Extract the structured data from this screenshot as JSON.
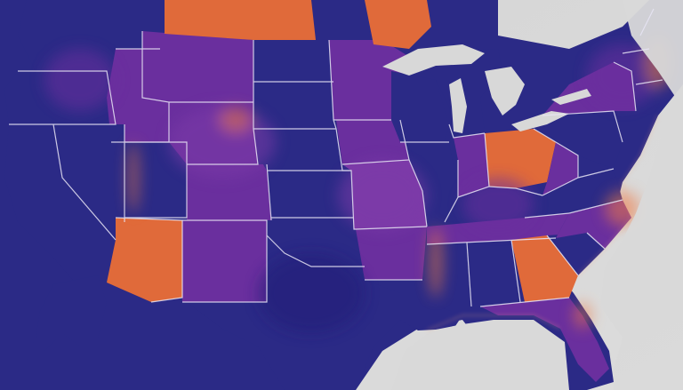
{
  "map": {
    "palette": {
      "background": "#cfcfcf",
      "ocean_light": "#d9d9d9",
      "navy": "#2b2a86",
      "navy_dark": "#241f78",
      "purple": "#6a2f9e",
      "violet": "#7c3aa8",
      "orange": "#e06a3a",
      "orange_light": "#ee7a44",
      "border": "#e9e6f5"
    },
    "regions": [
      {
        "name": "washington",
        "fill": "navy"
      },
      {
        "name": "oregon",
        "fill": "navy"
      },
      {
        "name": "california",
        "fill": "navy"
      },
      {
        "name": "idaho",
        "fill": "purple"
      },
      {
        "name": "nevada",
        "fill": "navy"
      },
      {
        "name": "utah",
        "fill": "navy"
      },
      {
        "name": "arizona",
        "fill": "orange"
      },
      {
        "name": "montana",
        "fill": "purple"
      },
      {
        "name": "wyoming",
        "fill": "purple"
      },
      {
        "name": "colorado",
        "fill": "purple"
      },
      {
        "name": "new-mexico",
        "fill": "purple"
      },
      {
        "name": "north-dakota",
        "fill": "navy"
      },
      {
        "name": "south-dakota",
        "fill": "navy"
      },
      {
        "name": "nebraska",
        "fill": "navy"
      },
      {
        "name": "kansas",
        "fill": "navy"
      },
      {
        "name": "oklahoma",
        "fill": "navy"
      },
      {
        "name": "texas",
        "fill": "navy"
      },
      {
        "name": "minnesota",
        "fill": "purple"
      },
      {
        "name": "iowa",
        "fill": "purple"
      },
      {
        "name": "missouri",
        "fill": "violet"
      },
      {
        "name": "arkansas",
        "fill": "purple"
      },
      {
        "name": "louisiana",
        "fill": "navy"
      },
      {
        "name": "wisconsin",
        "fill": "navy"
      },
      {
        "name": "illinois",
        "fill": "navy"
      },
      {
        "name": "michigan",
        "fill": "navy"
      },
      {
        "name": "indiana",
        "fill": "purple"
      },
      {
        "name": "ohio",
        "fill": "orange"
      },
      {
        "name": "kentucky",
        "fill": "navy"
      },
      {
        "name": "tennessee",
        "fill": "purple"
      },
      {
        "name": "mississippi",
        "fill": "navy"
      },
      {
        "name": "alabama",
        "fill": "navy"
      },
      {
        "name": "georgia",
        "fill": "orange"
      },
      {
        "name": "florida",
        "fill": "purple"
      },
      {
        "name": "south-carolina",
        "fill": "navy"
      },
      {
        "name": "north-carolina",
        "fill": "purple"
      },
      {
        "name": "virginia",
        "fill": "navy"
      },
      {
        "name": "west-virginia",
        "fill": "purple"
      },
      {
        "name": "pennsylvania",
        "fill": "navy"
      },
      {
        "name": "new-york",
        "fill": "purple"
      },
      {
        "name": "new-england",
        "fill": "navy"
      },
      {
        "name": "alaska",
        "fill": "navy"
      },
      {
        "name": "canada-north",
        "fill": "orange"
      }
    ]
  }
}
